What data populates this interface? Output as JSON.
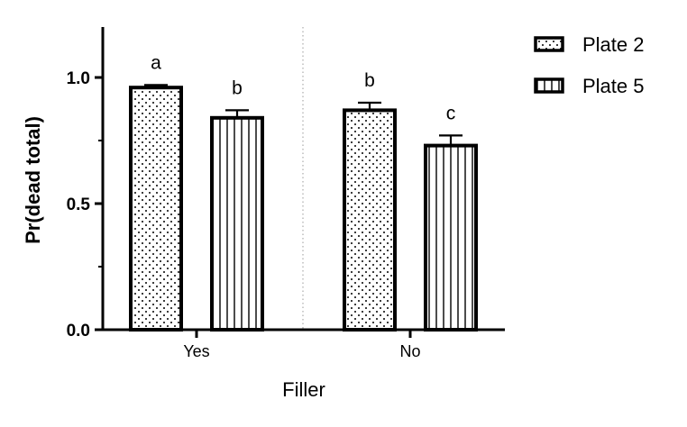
{
  "chart_data": {
    "type": "bar",
    "categories": [
      "Yes",
      "No"
    ],
    "series": [
      {
        "name": "Plate 2",
        "pattern": "dots",
        "values": [
          0.96,
          0.87
        ],
        "errors": [
          0.01,
          0.03
        ],
        "letters": [
          "a",
          "b"
        ]
      },
      {
        "name": "Plate 5",
        "pattern": "vertical-lines",
        "values": [
          0.84,
          0.73
        ],
        "errors": [
          0.03,
          0.04
        ],
        "letters": [
          "b",
          "c"
        ]
      }
    ],
    "xlabel": "Filler",
    "ylabel": "Pr(dead total)",
    "ylim": [
      0.0,
      1.2
    ],
    "yticks": [
      0.0,
      0.5,
      1.0
    ],
    "ytick_labels": [
      "0.0",
      "0.5",
      "1.0"
    ],
    "legend_position": "top-right",
    "grid": false,
    "bar_edge_color": "#000000",
    "bar_fill_color": "#ffffff"
  }
}
